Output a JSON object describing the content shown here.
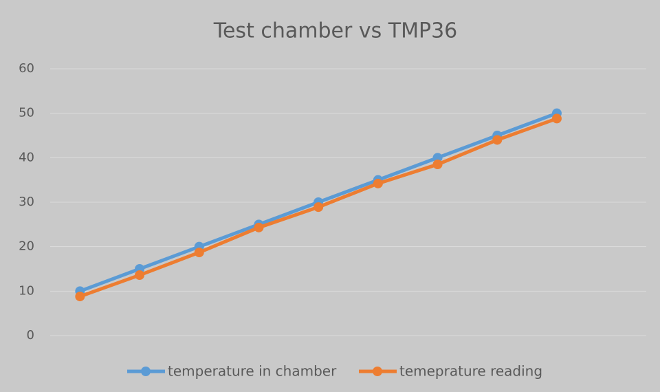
{
  "chart_data": {
    "type": "line",
    "title": "Test chamber vs TMP36",
    "categories": [
      null,
      null,
      null,
      null,
      null,
      null,
      null,
      null,
      null
    ],
    "series": [
      {
        "name": "temperature in chamber",
        "color": "#5b9bd5",
        "values": [
          10,
          15,
          20,
          25,
          30,
          35,
          40,
          45,
          50
        ]
      },
      {
        "name": "temeprature reading",
        "color": "#ed7d31",
        "values": [
          8.8,
          13.6,
          18.7,
          24.3,
          28.9,
          34.2,
          38.5,
          44.0,
          48.8
        ]
      }
    ],
    "ylim": [
      0,
      60
    ],
    "yticks": [
      0,
      10,
      20,
      30,
      40,
      50,
      60
    ],
    "grid": true,
    "legend": "bottom"
  }
}
